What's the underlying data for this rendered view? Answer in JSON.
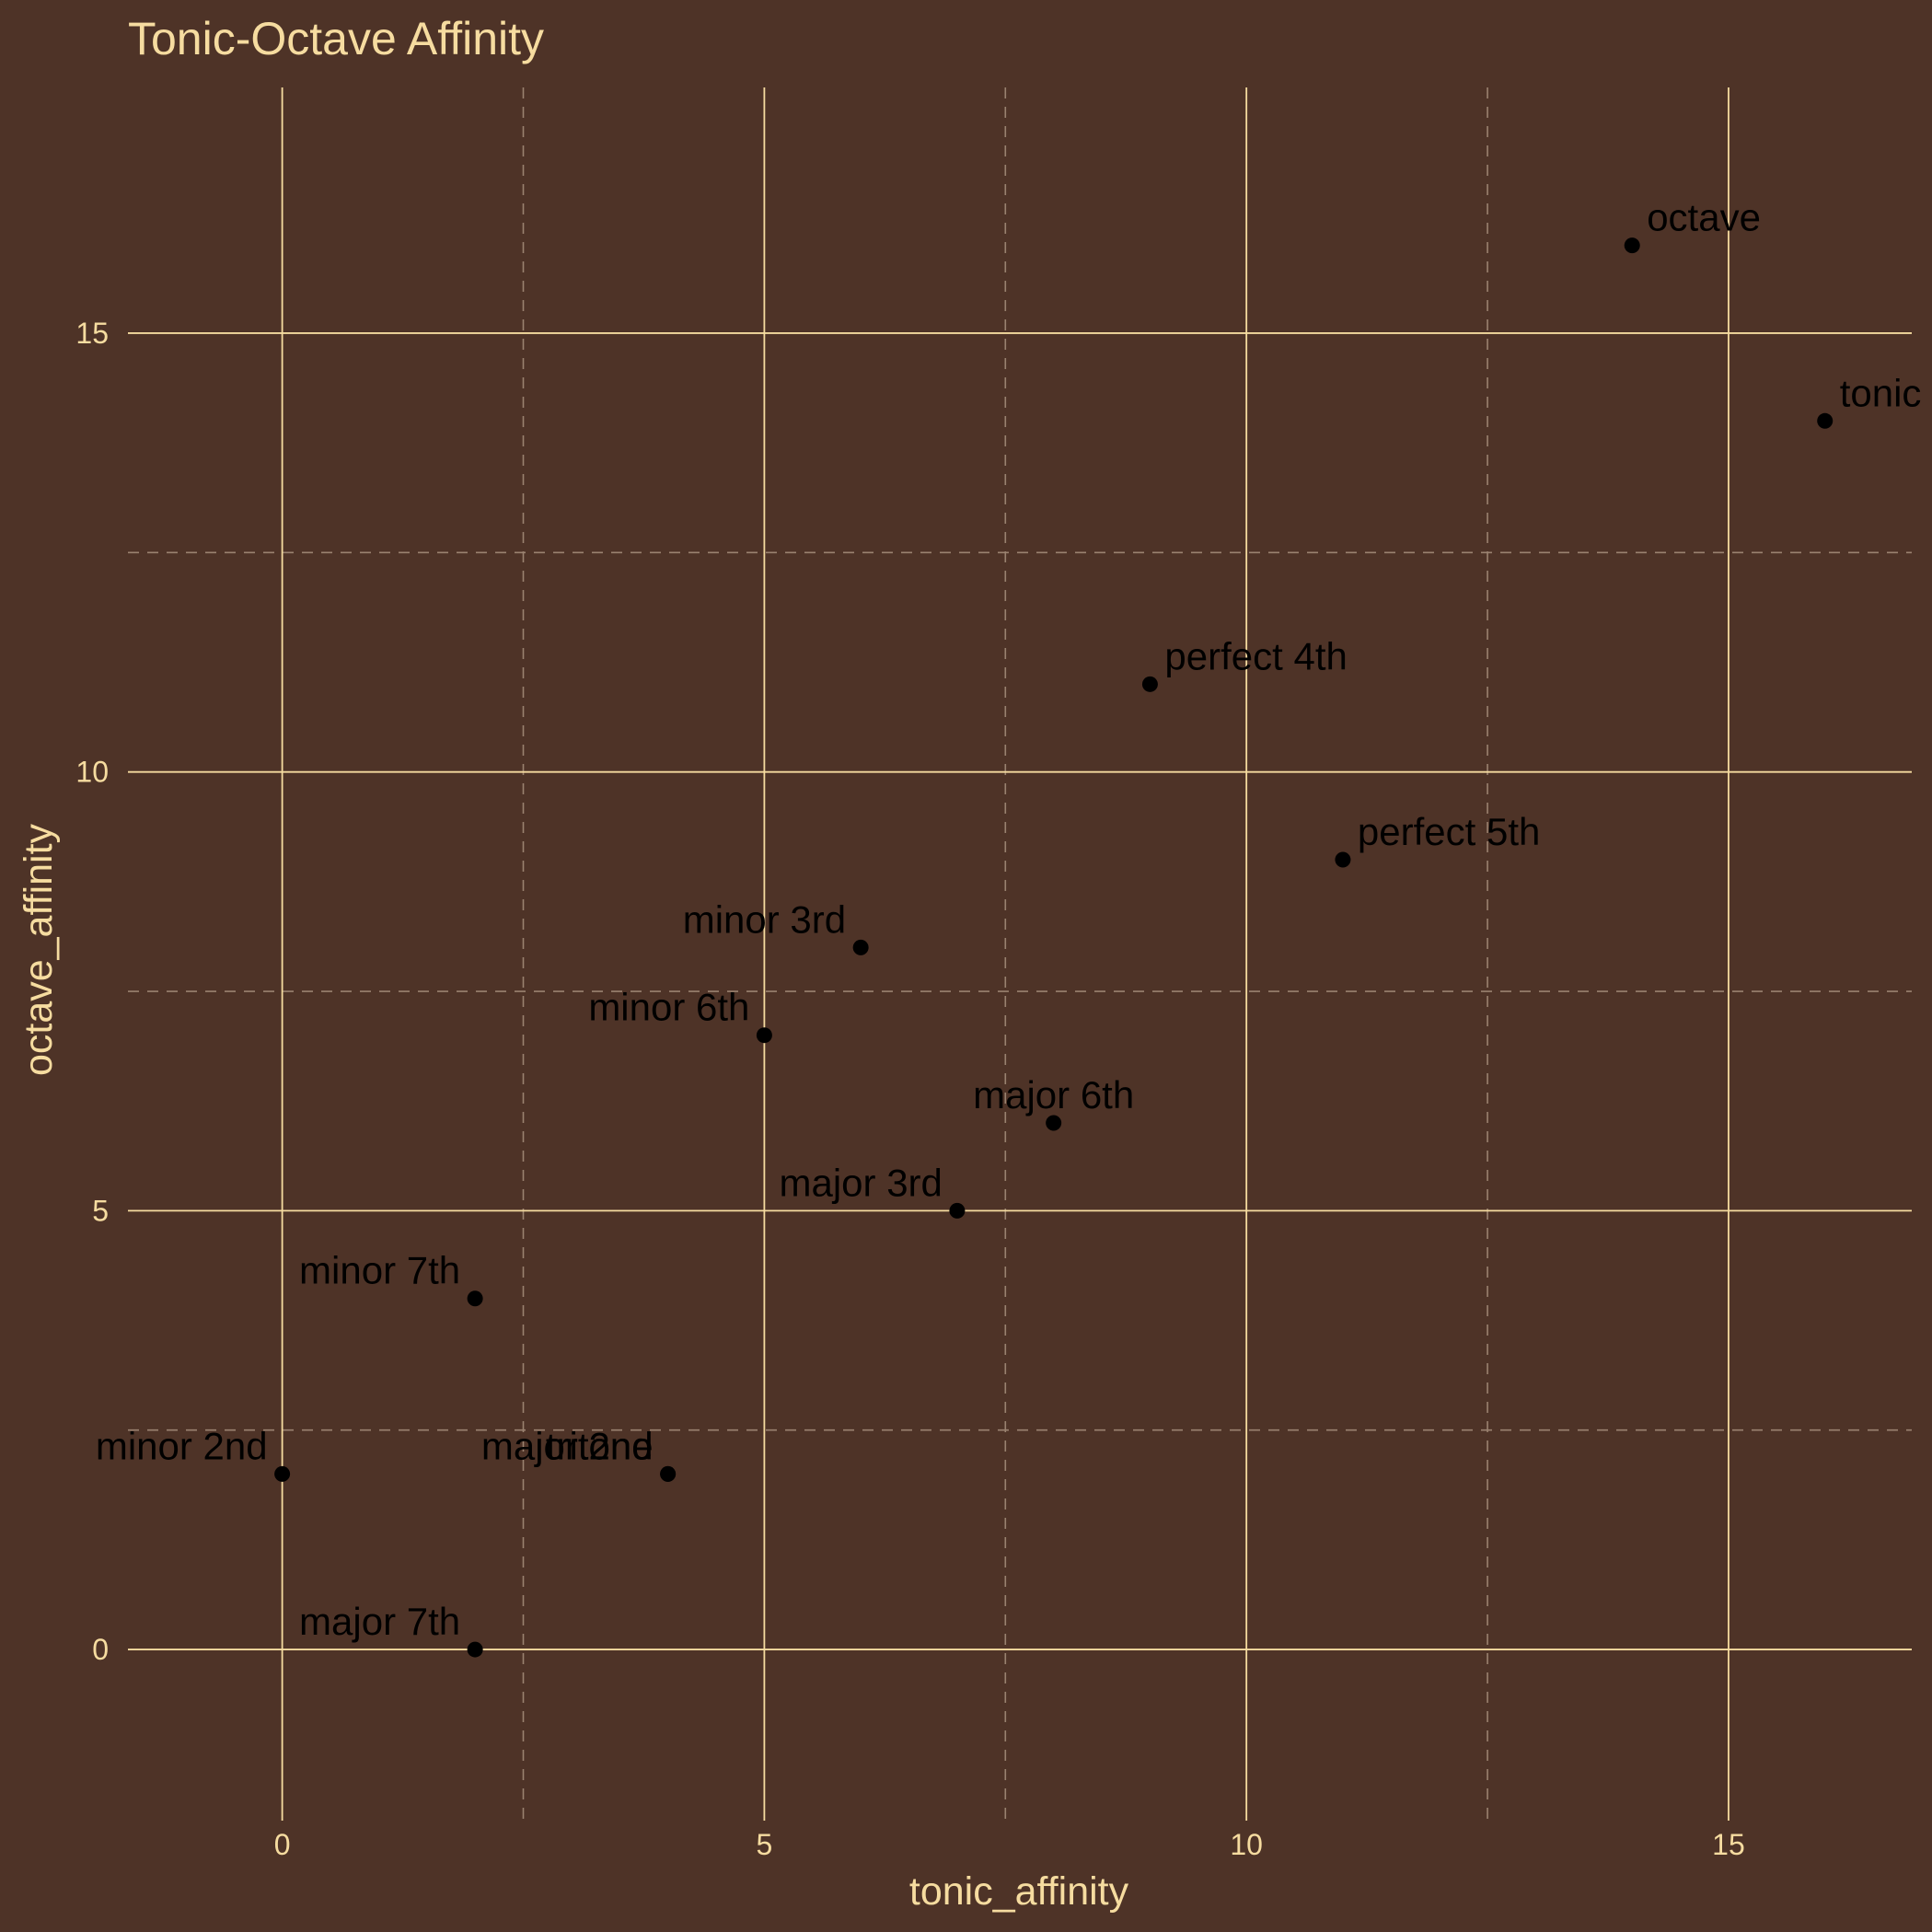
{
  "colors": {
    "background": "#4e3327",
    "grid_major": "#f6dca0",
    "grid_minor": "#9a8270",
    "text": "#f6dca0",
    "points": "#000000"
  },
  "chart_data": {
    "type": "scatter",
    "title": "Tonic-Octave Affinity",
    "xlabel": "tonic_affinity",
    "ylabel": "octave_affinity",
    "xlim": [
      -1.6,
      16.9
    ],
    "ylim": [
      -1.95,
      17.8
    ],
    "x_ticks": [
      0,
      5,
      10,
      15
    ],
    "y_ticks": [
      0,
      5,
      10,
      15
    ],
    "x_minor": [
      2.5,
      7.5,
      12.5
    ],
    "y_minor": [
      2.5,
      7.5,
      12.5
    ],
    "grid": true,
    "legend": "none",
    "points": [
      {
        "label": "octave",
        "x": 14,
        "y": 16,
        "anchor": "start"
      },
      {
        "label": "tonic",
        "x": 16,
        "y": 14,
        "anchor": "start"
      },
      {
        "label": "perfect 4th",
        "x": 9,
        "y": 11,
        "anchor": "start"
      },
      {
        "label": "perfect 5th",
        "x": 11,
        "y": 9,
        "anchor": "start"
      },
      {
        "label": "minor 3rd",
        "x": 6,
        "y": 8,
        "anchor": "end"
      },
      {
        "label": "minor 6th",
        "x": 5,
        "y": 7,
        "anchor": "end"
      },
      {
        "label": "major 6th",
        "x": 8,
        "y": 6,
        "anchor": "middle"
      },
      {
        "label": "major 3rd",
        "x": 7,
        "y": 5,
        "anchor": "end"
      },
      {
        "label": "minor 7th",
        "x": 2,
        "y": 4,
        "anchor": "end"
      },
      {
        "label": "minor 2nd",
        "x": 0,
        "y": 2,
        "anchor": "end"
      },
      {
        "label": "major 2nd",
        "x": 4,
        "y": 2,
        "anchor": "end"
      },
      {
        "label": "tritone",
        "x": 4,
        "y": 2,
        "anchor": "end"
      },
      {
        "label": "major 7th",
        "x": 2,
        "y": 0,
        "anchor": "end"
      }
    ]
  }
}
